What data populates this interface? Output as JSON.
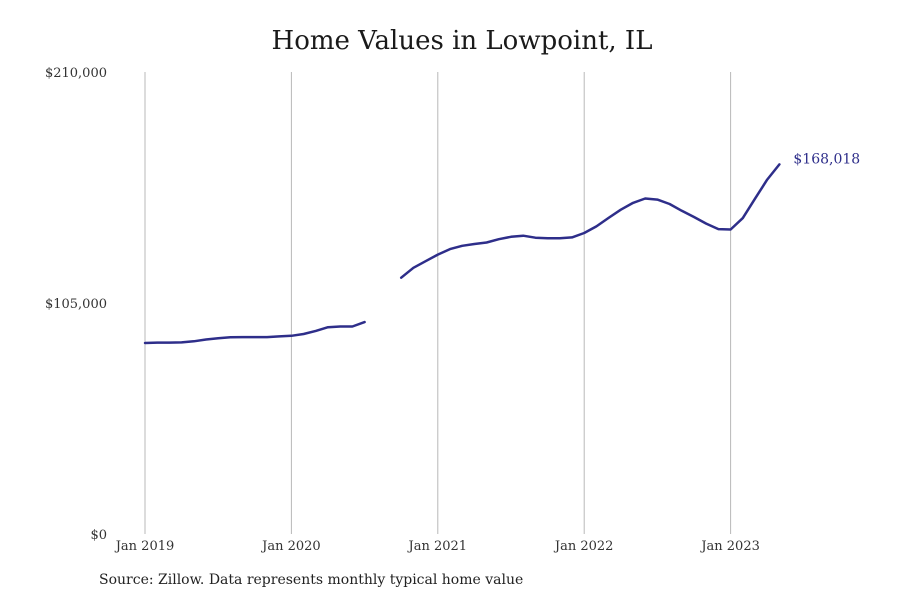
{
  "chart_title": "Home Values in Lowpoint, IL",
  "source_note": "Source: Zillow. Data represents monthly typical home value",
  "colors": {
    "line": "#2e2e8a",
    "grid": "#b8b8b8",
    "text": "#333333"
  },
  "chart_data": {
    "type": "line",
    "title": "Home Values in Lowpoint, IL",
    "xlabel": "",
    "ylabel": "",
    "x_format": "year-month",
    "xlim": [
      "2019-01",
      "2023-09"
    ],
    "ylim": [
      0,
      210000
    ],
    "yticks": [
      {
        "value": 0,
        "label": "$0"
      },
      {
        "value": 105000,
        "label": "$105,000"
      },
      {
        "value": 210000,
        "label": "$210,000"
      }
    ],
    "xticks": [
      {
        "x": "2019-01",
        "label": "Jan 2019"
      },
      {
        "x": "2020-01",
        "label": "Jan 2020"
      },
      {
        "x": "2021-01",
        "label": "Jan 2021"
      },
      {
        "x": "2022-01",
        "label": "Jan 2022"
      },
      {
        "x": "2023-01",
        "label": "Jan 2023"
      }
    ],
    "grid": "vertical at x ticks",
    "series": [
      {
        "segments": [
          [
            [
              "2019-01",
              86800
            ],
            [
              "2019-02",
              87000
            ],
            [
              "2019-03",
              87000
            ],
            [
              "2019-04",
              87100
            ],
            [
              "2019-05",
              87600
            ],
            [
              "2019-06",
              88400
            ],
            [
              "2019-07",
              89000
            ],
            [
              "2019-08",
              89400
            ],
            [
              "2019-09",
              89500
            ],
            [
              "2019-10",
              89500
            ],
            [
              "2019-11",
              89500
            ],
            [
              "2019-12",
              89800
            ],
            [
              "2020-01",
              90100
            ],
            [
              "2020-02",
              90900
            ],
            [
              "2020-03",
              92300
            ],
            [
              "2020-04",
              94000
            ],
            [
              "2020-05",
              94300
            ],
            [
              "2020-06",
              94300
            ],
            [
              "2020-07",
              96300
            ]
          ],
          [
            [
              "2020-10",
              116500
            ],
            [
              "2020-11",
              121000
            ],
            [
              "2020-12",
              124000
            ],
            [
              "2021-01",
              127000
            ],
            [
              "2021-02",
              129500
            ],
            [
              "2021-03",
              131000
            ],
            [
              "2021-04",
              131800
            ],
            [
              "2021-05",
              132500
            ],
            [
              "2021-06",
              134000
            ],
            [
              "2021-07",
              135100
            ],
            [
              "2021-08",
              135600
            ],
            [
              "2021-09",
              134700
            ],
            [
              "2021-10",
              134400
            ],
            [
              "2021-11",
              134400
            ],
            [
              "2021-12",
              134800
            ],
            [
              "2022-01",
              136800
            ],
            [
              "2022-02",
              139800
            ],
            [
              "2022-03",
              143700
            ],
            [
              "2022-04",
              147400
            ],
            [
              "2022-05",
              150500
            ],
            [
              "2022-06",
              152500
            ],
            [
              "2022-07",
              152000
            ],
            [
              "2022-08",
              150000
            ],
            [
              "2022-09",
              146900
            ],
            [
              "2022-10",
              144100
            ],
            [
              "2022-11",
              141100
            ],
            [
              "2022-12",
              138600
            ],
            [
              "2023-01",
              138400
            ],
            [
              "2023-02",
              143600
            ],
            [
              "2023-03",
              152400
            ],
            [
              "2023-04",
              161100
            ],
            [
              "2023-05",
              168018
            ]
          ]
        ]
      }
    ],
    "end_label": "$168,018"
  }
}
